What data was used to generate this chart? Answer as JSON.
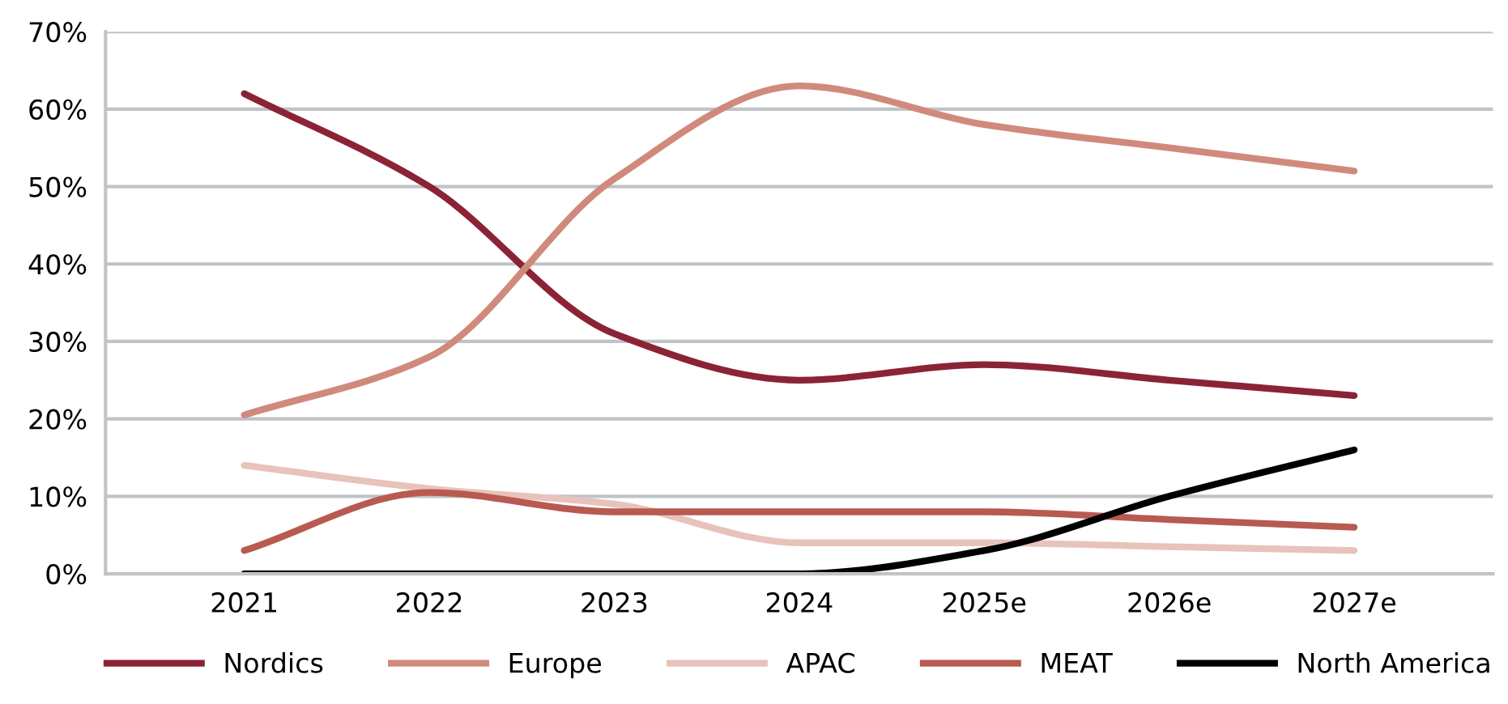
{
  "chart_data": {
    "type": "line",
    "categories": [
      "2021",
      "2022",
      "2023",
      "2024",
      "2025e",
      "2026e",
      "2027e"
    ],
    "series": [
      {
        "name": "Nordics",
        "color": "#8b2336",
        "values": [
          62,
          50,
          31,
          25,
          27,
          25,
          23
        ]
      },
      {
        "name": "Europe",
        "color": "#d08a7c",
        "values": [
          20.5,
          28,
          51,
          63,
          58,
          55,
          52
        ]
      },
      {
        "name": "APAC",
        "color": "#e8c3bb",
        "values": [
          14,
          11,
          9,
          4,
          4,
          3.5,
          3
        ]
      },
      {
        "name": "MEAT",
        "color": "#b85a50",
        "values": [
          3,
          10.5,
          8,
          8,
          8,
          7,
          6
        ]
      },
      {
        "name": "North America",
        "color": "#000000",
        "values": [
          0,
          0,
          0,
          0,
          3,
          10,
          16
        ]
      }
    ],
    "ylim": [
      0,
      70
    ],
    "yticks": [
      {
        "value": 0,
        "label": "0%"
      },
      {
        "value": 10,
        "label": "10%"
      },
      {
        "value": 20,
        "label": "20%"
      },
      {
        "value": 30,
        "label": "30%"
      },
      {
        "value": 40,
        "label": "40%"
      },
      {
        "value": 50,
        "label": "50%"
      },
      {
        "value": 60,
        "label": "60%"
      },
      {
        "value": 70,
        "label": "70%"
      }
    ],
    "grid": "y",
    "legend": "bottom",
    "marker": "none",
    "line_style": "solid"
  }
}
